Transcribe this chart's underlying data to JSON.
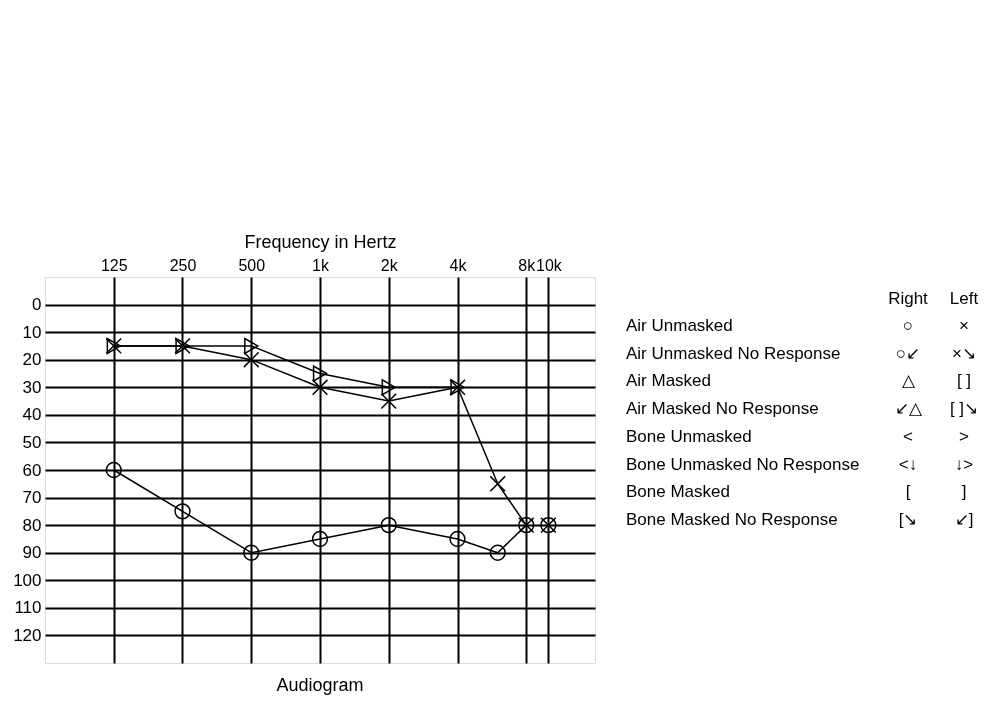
{
  "chart_data": {
    "type": "line",
    "title": "Audiogram",
    "xlabel": "Frequency in Hertz",
    "log": "x",
    "xlim": [
      62.5,
      16000
    ],
    "xticks": [
      125,
      250,
      500,
      {
        "value": 1000,
        "label": "1k"
      },
      {
        "value": 2000,
        "label": "2k"
      },
      {
        "value": 4000,
        "label": "4k"
      },
      {
        "value": 8000,
        "label": "8k"
      },
      {
        "value": 10000,
        "label": "10k"
      }
    ],
    "ylim": [
      130,
      -10
    ],
    "yticks": [
      0,
      10,
      20,
      30,
      40,
      50,
      60,
      70,
      80,
      90,
      100,
      110,
      120
    ],
    "grid": true,
    "line_style": "solid",
    "series": [
      {
        "color": "#000000",
        "marker": "circle",
        "x": [
          125,
          250,
          500,
          1000,
          2000,
          4000,
          6000,
          8000
        ],
        "values": [
          60,
          75,
          90,
          85,
          80,
          85,
          90,
          80
        ]
      },
      {
        "color": "#000000",
        "marker": "cross",
        "x": [
          125,
          250,
          500,
          1000,
          2000,
          4000,
          6000,
          8000
        ],
        "values": [
          15,
          15,
          20,
          30,
          35,
          30,
          65,
          80
        ]
      },
      {
        "color": "#000000",
        "marker": "triangle",
        "x": [
          125,
          250,
          500,
          1000,
          2000,
          4000
        ],
        "values": [
          15,
          15,
          15,
          25,
          30,
          30
        ]
      },
      {
        "type": "scatter",
        "color": "#000000",
        "marker": "cross",
        "x": [
          10000
        ],
        "values": [
          80
        ]
      },
      {
        "type": "scatter",
        "color": "#000000",
        "marker": "circle",
        "x": [
          10000
        ],
        "values": [
          80
        ]
      }
    ],
    "annotations": [
      "Right",
      "Left",
      "Air Unmasked",
      "○",
      "×",
      "Air Unmasked No Response",
      "○↙",
      "×↘",
      "Air Masked",
      "△",
      "[ ]",
      "Air Masked    No Response",
      "↙△",
      "[ ]↘",
      "Bone Unmasked",
      "<",
      ">",
      "Bone Unmasked  No Response",
      "<↓",
      "↓>",
      "Bone Masked",
      "[",
      "]",
      "Bone Masked        No Response",
      "[↘",
      "↙]"
    ]
  }
}
